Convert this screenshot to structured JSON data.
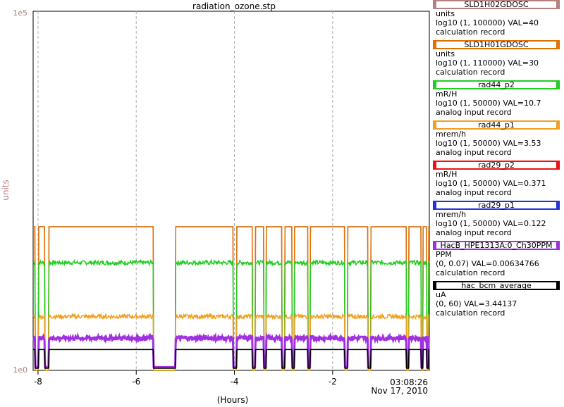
{
  "chart_data": {
    "type": "line",
    "title": "radiation_ozone.stp",
    "ylabel": "units",
    "xlabel": "(Hours)",
    "y_scale": "log",
    "y_top_label": "1e5",
    "y_bottom_label": "1e0",
    "xlim": [
      -8.1,
      -0.03
    ],
    "x_ticks": [
      -8,
      -6,
      -4,
      -2
    ],
    "x_tick_labels": [
      "-8",
      "-6",
      "-4",
      "-2"
    ],
    "end_time": "03:08:26",
    "end_date": "Nov 17, 2010",
    "grid": true,
    "series": [
      {
        "name": "SLD1H02GDOSC",
        "unit": "units",
        "range": "log10 (1, 100000) VAL=40",
        "record": "calculation record",
        "color": "#b48080",
        "display_level": 0.4
      },
      {
        "name": "SLD1H01GDOSC",
        "unit": "units",
        "range": "log10 (1, 110000) VAL=30",
        "record": "calculation record",
        "color": "#e07000",
        "display_level": 0.4
      },
      {
        "name": "rad44_p2",
        "unit": "mR/H",
        "range": "log10 (1, 50000) VAL=10.7",
        "record": "analog input record",
        "color": "#22cc22",
        "display_level": 0.3
      },
      {
        "name": "rad44_p1",
        "unit": "mrem/h",
        "range": "log10 (1, 50000) VAL=3.53",
        "record": "analog input record",
        "color": "#f0a020",
        "display_level": 0.15
      },
      {
        "name": "rad29_p2",
        "unit": "mR/H",
        "range": "log10 (1, 50000) VAL=0.371",
        "record": "analog input record",
        "color": "#ee1111",
        "display_level": 0.0
      },
      {
        "name": "rad29_p1",
        "unit": "mrem/h",
        "range": "log10 (1, 50000) VAL=0.122",
        "record": "analog input record",
        "color": "#2233dd",
        "display_level": 0.0
      },
      {
        "name": "HacB_HPE1313A:0_Ch30PPM",
        "unit": "PPM",
        "range": "(0, 0.07) VAL=0.00634766",
        "record": "calculation record",
        "color": "#a030e0",
        "display_level": 0.09
      },
      {
        "name": "hac_bcm_average",
        "unit": "uA",
        "range": "(0, 60) VAL=3.44137",
        "record": "calculation record",
        "color": "#000000",
        "display_level": 0.058
      }
    ]
  }
}
